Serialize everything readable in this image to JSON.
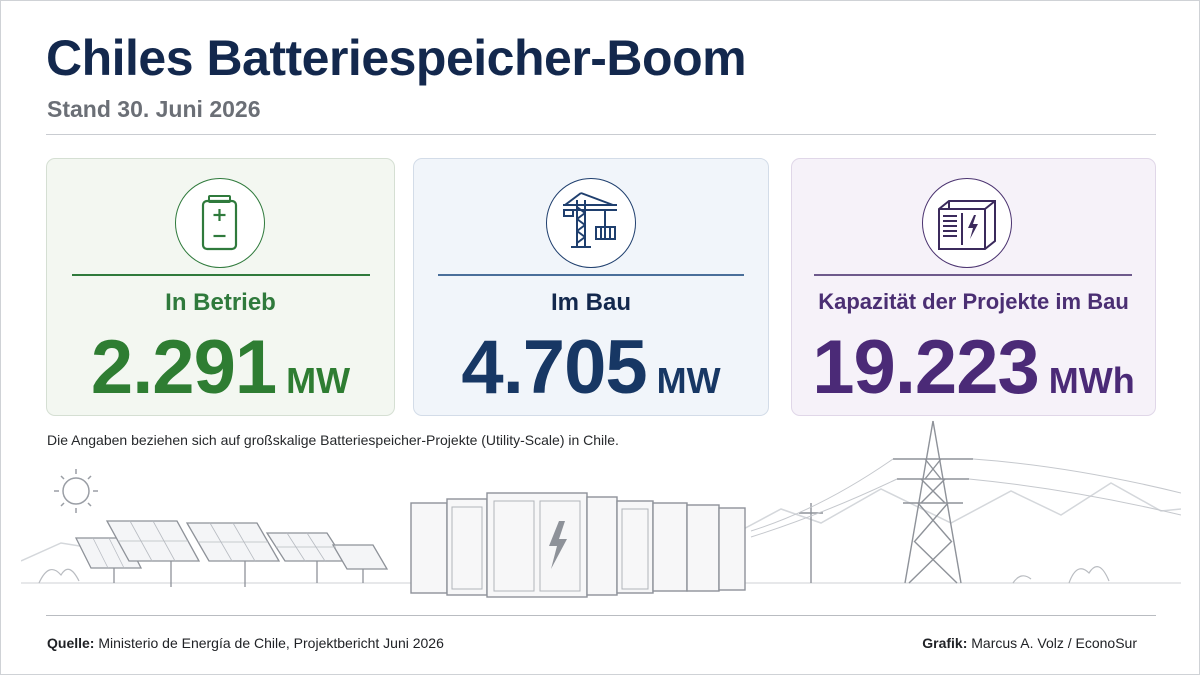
{
  "header": {
    "title": "Chiles Batteriespeicher-Boom",
    "subtitle": "Stand 30. Juni 2026"
  },
  "cards": [
    {
      "label": "In Betrieb",
      "value": "2.291",
      "unit": "MW",
      "icon": "battery-icon",
      "color": "#2e7d32"
    },
    {
      "label": "Im Bau",
      "value": "4.705",
      "unit": "MW",
      "icon": "crane-icon",
      "color": "#173764"
    },
    {
      "label": "Kapazität der Projekte im Bau",
      "value": "19.223",
      "unit": "MWh",
      "icon": "battery-container-icon",
      "color": "#4b2a77"
    }
  ],
  "note": "Die Angaben beziehen sich auf großskalige Batteriespeicher-Projekte (Utility-Scale) in Chile.",
  "illustration": {
    "icons": [
      "sun-icon",
      "solar-panels-icon",
      "battery-containers-icon",
      "power-pylon-icon",
      "mountains-icon"
    ]
  },
  "footer": {
    "source_label": "Quelle:",
    "source_text": "Ministerio de Energía de Chile, Projektbericht Juni 2026",
    "credit_label": "Grafik:",
    "credit_text": "Marcus A. Volz / EconoSur"
  }
}
